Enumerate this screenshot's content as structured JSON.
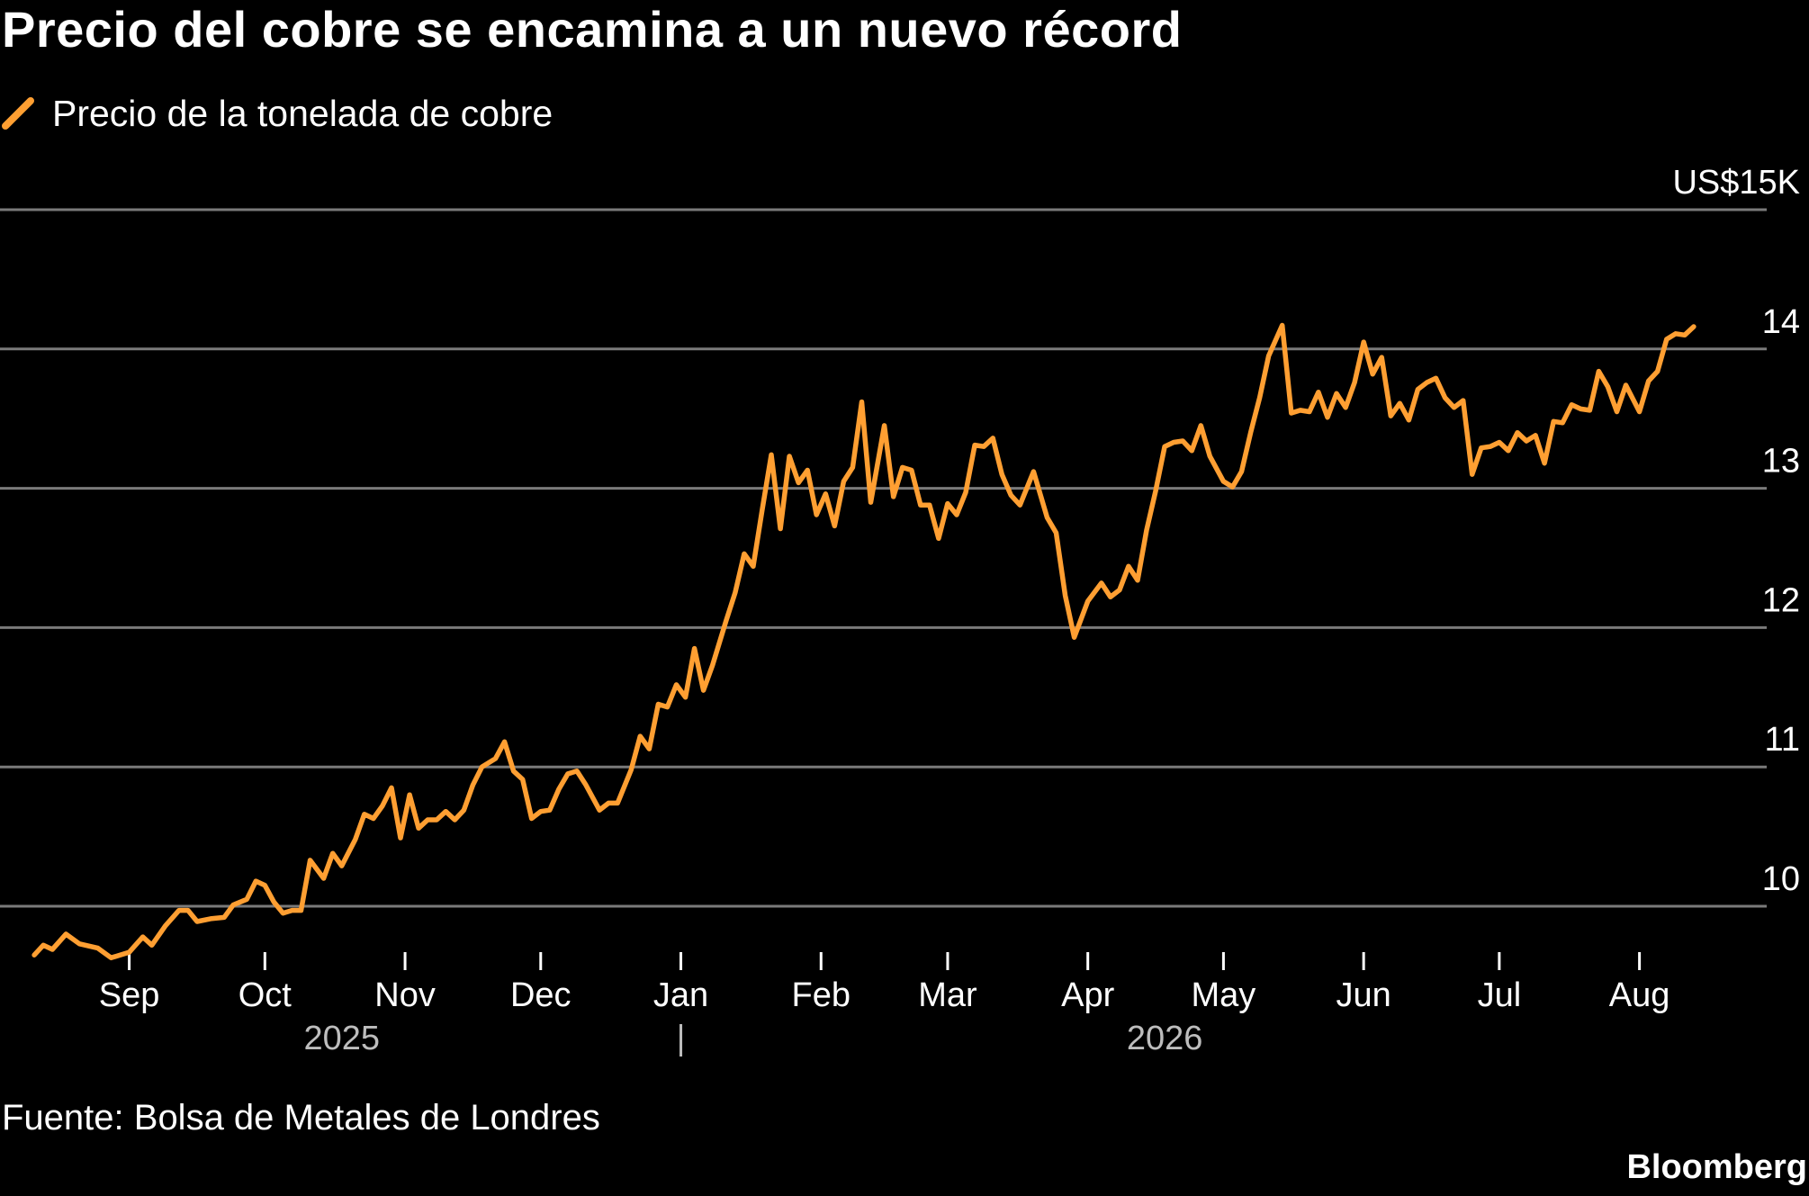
{
  "title": "Precio del cobre se encamina a un nuevo récord",
  "legend": {
    "label": "Precio de la tonelada de cobre",
    "color": "#ff9f32"
  },
  "source": "Fuente: Bolsa de Metales de Londres",
  "brand": "Bloomberg",
  "chart_data": {
    "type": "line",
    "title": "Precio del cobre se encamina a un nuevo récord",
    "xlabel": "",
    "ylabel": "",
    "ylim": [
      9.7,
      15
    ],
    "y_ticks": [
      {
        "value": 10,
        "label": "10"
      },
      {
        "value": 11,
        "label": "11"
      },
      {
        "value": 12,
        "label": "12"
      },
      {
        "value": 13,
        "label": "13"
      },
      {
        "value": 14,
        "label": "14"
      },
      {
        "value": 15,
        "label": "US$15K"
      }
    ],
    "x_range": [
      "2025-08-07",
      "2026-08-17"
    ],
    "x_ticks": [
      {
        "date": "2025-09-01",
        "label": "Sep"
      },
      {
        "date": "2025-10-01",
        "label": "Oct"
      },
      {
        "date": "2025-11-01",
        "label": "Nov"
      },
      {
        "date": "2025-12-01",
        "label": "Dec"
      },
      {
        "date": "2026-01-01",
        "label": "Jan"
      },
      {
        "date": "2026-02-01",
        "label": "Feb"
      },
      {
        "date": "2026-03-01",
        "label": "Mar"
      },
      {
        "date": "2026-04-01",
        "label": "Apr"
      },
      {
        "date": "2026-05-01",
        "label": "May"
      },
      {
        "date": "2026-06-01",
        "label": "Jun"
      },
      {
        "date": "2026-07-01",
        "label": "Jul"
      },
      {
        "date": "2026-08-01",
        "label": "Aug"
      }
    ],
    "year_labels": [
      {
        "date": "2025-10-18",
        "label": "2025"
      },
      {
        "date": "2026-04-18",
        "label": "2026"
      }
    ],
    "year_divider": "2026-01-01",
    "grid": true,
    "legend_position": "top-left",
    "series": [
      {
        "name": "Precio de la tonelada de cobre",
        "color": "#ff9f32",
        "points": [
          [
            "2025-08-11",
            9.65
          ],
          [
            "2025-08-13",
            9.72
          ],
          [
            "2025-08-15",
            9.69
          ],
          [
            "2025-08-18",
            9.8
          ],
          [
            "2025-08-21",
            9.73
          ],
          [
            "2025-08-25",
            9.7
          ],
          [
            "2025-08-28",
            9.63
          ],
          [
            "2025-09-01",
            9.67
          ],
          [
            "2025-09-04",
            9.78
          ],
          [
            "2025-09-06",
            9.72
          ],
          [
            "2025-09-09",
            9.86
          ],
          [
            "2025-09-12",
            9.97
          ],
          [
            "2025-09-14",
            9.97
          ],
          [
            "2025-09-16",
            9.89
          ],
          [
            "2025-09-19",
            9.91
          ],
          [
            "2025-09-22",
            9.92
          ],
          [
            "2025-09-24",
            10.01
          ],
          [
            "2025-09-27",
            10.05
          ],
          [
            "2025-09-29",
            10.18
          ],
          [
            "2025-10-01",
            10.15
          ],
          [
            "2025-10-03",
            10.03
          ],
          [
            "2025-10-05",
            9.95
          ],
          [
            "2025-10-07",
            9.97
          ],
          [
            "2025-10-09",
            9.97
          ],
          [
            "2025-10-11",
            10.33
          ],
          [
            "2025-10-14",
            10.2
          ],
          [
            "2025-10-16",
            10.38
          ],
          [
            "2025-10-18",
            10.29
          ],
          [
            "2025-10-21",
            10.48
          ],
          [
            "2025-10-23",
            10.66
          ],
          [
            "2025-10-25",
            10.63
          ],
          [
            "2025-10-27",
            10.72
          ],
          [
            "2025-10-29",
            10.85
          ],
          [
            "2025-10-31",
            10.49
          ],
          [
            "2025-11-02",
            10.8
          ],
          [
            "2025-11-04",
            10.56
          ],
          [
            "2025-11-06",
            10.62
          ],
          [
            "2025-11-08",
            10.62
          ],
          [
            "2025-11-10",
            10.68
          ],
          [
            "2025-11-12",
            10.62
          ],
          [
            "2025-11-14",
            10.69
          ],
          [
            "2025-11-16",
            10.87
          ],
          [
            "2025-11-18",
            11.0
          ],
          [
            "2025-11-21",
            11.06
          ],
          [
            "2025-11-23",
            11.18
          ],
          [
            "2025-11-25",
            10.97
          ],
          [
            "2025-11-27",
            10.91
          ],
          [
            "2025-11-29",
            10.63
          ],
          [
            "2025-12-01",
            10.68
          ],
          [
            "2025-12-03",
            10.69
          ],
          [
            "2025-12-05",
            10.84
          ],
          [
            "2025-12-07",
            10.95
          ],
          [
            "2025-12-09",
            10.97
          ],
          [
            "2025-12-11",
            10.87
          ],
          [
            "2025-12-14",
            10.69
          ],
          [
            "2025-12-16",
            10.74
          ],
          [
            "2025-12-18",
            10.74
          ],
          [
            "2025-12-21",
            10.98
          ],
          [
            "2025-12-23",
            11.22
          ],
          [
            "2025-12-25",
            11.13
          ],
          [
            "2025-12-27",
            11.45
          ],
          [
            "2025-12-29",
            11.43
          ],
          [
            "2025-12-31",
            11.59
          ],
          [
            "2026-01-02",
            11.5
          ],
          [
            "2026-01-04",
            11.85
          ],
          [
            "2026-01-06",
            11.55
          ],
          [
            "2026-01-08",
            11.73
          ],
          [
            "2026-01-11",
            12.05
          ],
          [
            "2026-01-13",
            12.25
          ],
          [
            "2026-01-15",
            12.53
          ],
          [
            "2026-01-17",
            12.44
          ],
          [
            "2026-01-19",
            12.85
          ],
          [
            "2026-01-21",
            13.24
          ],
          [
            "2026-01-23",
            12.71
          ],
          [
            "2026-01-25",
            13.23
          ],
          [
            "2026-01-27",
            13.04
          ],
          [
            "2026-01-29",
            13.13
          ],
          [
            "2026-01-31",
            12.81
          ],
          [
            "2026-02-02",
            12.96
          ],
          [
            "2026-02-04",
            12.73
          ],
          [
            "2026-02-06",
            13.05
          ],
          [
            "2026-02-08",
            13.15
          ],
          [
            "2026-02-10",
            13.62
          ],
          [
            "2026-02-12",
            12.9
          ],
          [
            "2026-02-15",
            13.45
          ],
          [
            "2026-02-17",
            12.94
          ],
          [
            "2026-02-19",
            13.15
          ],
          [
            "2026-02-21",
            13.13
          ],
          [
            "2026-02-23",
            12.88
          ],
          [
            "2026-02-25",
            12.88
          ],
          [
            "2026-02-27",
            12.64
          ],
          [
            "2026-03-01",
            12.89
          ],
          [
            "2026-03-03",
            12.81
          ],
          [
            "2026-03-05",
            12.97
          ],
          [
            "2026-03-07",
            13.31
          ],
          [
            "2026-03-09",
            13.3
          ],
          [
            "2026-03-11",
            13.36
          ],
          [
            "2026-03-13",
            13.1
          ],
          [
            "2026-03-15",
            12.95
          ],
          [
            "2026-03-17",
            12.88
          ],
          [
            "2026-03-20",
            13.12
          ],
          [
            "2026-03-23",
            12.79
          ],
          [
            "2026-03-25",
            12.68
          ],
          [
            "2026-03-27",
            12.23
          ],
          [
            "2026-03-29",
            11.93
          ],
          [
            "2026-04-01",
            12.19
          ],
          [
            "2026-04-04",
            12.32
          ],
          [
            "2026-04-06",
            12.22
          ],
          [
            "2026-04-08",
            12.27
          ],
          [
            "2026-04-10",
            12.44
          ],
          [
            "2026-04-12",
            12.34
          ],
          [
            "2026-04-14",
            12.7
          ],
          [
            "2026-04-16",
            12.98
          ],
          [
            "2026-04-18",
            13.3
          ],
          [
            "2026-04-20",
            13.33
          ],
          [
            "2026-04-22",
            13.34
          ],
          [
            "2026-04-24",
            13.27
          ],
          [
            "2026-04-26",
            13.45
          ],
          [
            "2026-04-28",
            13.23
          ],
          [
            "2026-05-01",
            13.05
          ],
          [
            "2026-05-03",
            13.01
          ],
          [
            "2026-05-05",
            13.12
          ],
          [
            "2026-05-07",
            13.4
          ],
          [
            "2026-05-09",
            13.65
          ],
          [
            "2026-05-11",
            13.95
          ],
          [
            "2026-05-14",
            14.17
          ],
          [
            "2026-05-16",
            13.54
          ],
          [
            "2026-05-18",
            13.56
          ],
          [
            "2026-05-20",
            13.55
          ],
          [
            "2026-05-22",
            13.69
          ],
          [
            "2026-05-24",
            13.51
          ],
          [
            "2026-05-26",
            13.68
          ],
          [
            "2026-05-28",
            13.58
          ],
          [
            "2026-05-30",
            13.76
          ],
          [
            "2026-06-01",
            14.05
          ],
          [
            "2026-06-03",
            13.82
          ],
          [
            "2026-06-05",
            13.94
          ],
          [
            "2026-06-07",
            13.52
          ],
          [
            "2026-06-09",
            13.61
          ],
          [
            "2026-06-11",
            13.49
          ],
          [
            "2026-06-13",
            13.71
          ],
          [
            "2026-06-15",
            13.76
          ],
          [
            "2026-06-17",
            13.79
          ],
          [
            "2026-06-19",
            13.65
          ],
          [
            "2026-06-21",
            13.58
          ],
          [
            "2026-06-23",
            13.63
          ],
          [
            "2026-06-25",
            13.1
          ],
          [
            "2026-06-27",
            13.29
          ],
          [
            "2026-06-29",
            13.3
          ],
          [
            "2026-07-01",
            13.33
          ],
          [
            "2026-07-03",
            13.27
          ],
          [
            "2026-07-05",
            13.4
          ],
          [
            "2026-07-07",
            13.34
          ],
          [
            "2026-07-09",
            13.38
          ],
          [
            "2026-07-11",
            13.18
          ],
          [
            "2026-07-13",
            13.48
          ],
          [
            "2026-07-15",
            13.47
          ],
          [
            "2026-07-17",
            13.6
          ],
          [
            "2026-07-19",
            13.57
          ],
          [
            "2026-07-21",
            13.56
          ],
          [
            "2026-07-23",
            13.84
          ],
          [
            "2026-07-25",
            13.73
          ],
          [
            "2026-07-27",
            13.55
          ],
          [
            "2026-07-29",
            13.74
          ],
          [
            "2026-08-01",
            13.55
          ],
          [
            "2026-08-03",
            13.77
          ],
          [
            "2026-08-05",
            13.84
          ],
          [
            "2026-08-07",
            14.07
          ],
          [
            "2026-08-09",
            14.11
          ],
          [
            "2026-08-11",
            14.1
          ],
          [
            "2026-08-13",
            14.16
          ]
        ]
      }
    ]
  }
}
